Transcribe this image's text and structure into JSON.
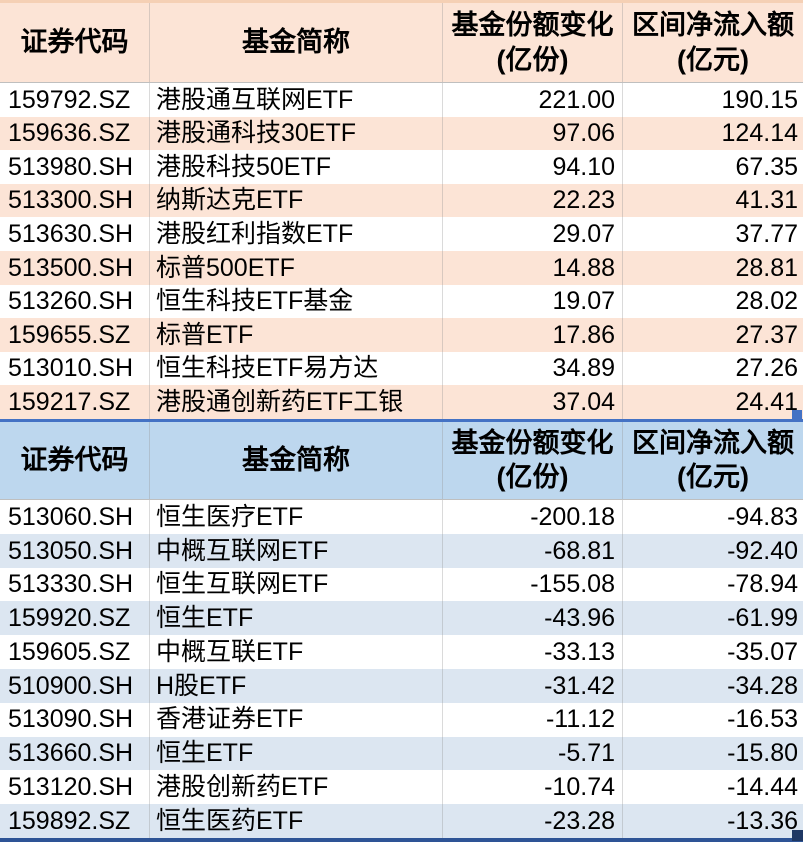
{
  "colors": {
    "peach_header": "#fce4d6",
    "peach_row": "#fce4d6",
    "peach_top_strip": "#f5d0b5",
    "blue_header": "#bdd7ee",
    "blue_row": "#dce6f1",
    "selection_border": "#4472c4",
    "bottom_border": "#2e5496",
    "bottom_handle": "#1f3864"
  },
  "inflow_table": {
    "header": {
      "code": "证券代码",
      "name": "基金简称",
      "share_change_line1": "基金份额变化",
      "share_change_line2": "(亿份)",
      "net_flow_line1": "区间净流入额",
      "net_flow_line2": "(亿元)"
    },
    "rows": [
      {
        "code": "159792.SZ",
        "name": "港股通互联网ETF",
        "share_change": "221.00",
        "net_flow": "190.15"
      },
      {
        "code": "159636.SZ",
        "name": "港股通科技30ETF",
        "share_change": "97.06",
        "net_flow": "124.14"
      },
      {
        "code": "513980.SH",
        "name": "港股科技50ETF",
        "share_change": "94.10",
        "net_flow": "67.35"
      },
      {
        "code": "513300.SH",
        "name": "纳斯达克ETF",
        "share_change": "22.23",
        "net_flow": "41.31"
      },
      {
        "code": "513630.SH",
        "name": "港股红利指数ETF",
        "share_change": "29.07",
        "net_flow": "37.77"
      },
      {
        "code": "513500.SH",
        "name": "标普500ETF",
        "share_change": "14.88",
        "net_flow": "28.81"
      },
      {
        "code": "513260.SH",
        "name": "恒生科技ETF基金",
        "share_change": "19.07",
        "net_flow": "28.02"
      },
      {
        "code": "159655.SZ",
        "name": "标普ETF",
        "share_change": "17.86",
        "net_flow": "27.37"
      },
      {
        "code": "513010.SH",
        "name": "恒生科技ETF易方达",
        "share_change": "34.89",
        "net_flow": "27.26"
      },
      {
        "code": "159217.SZ",
        "name": "港股通创新药ETF工银",
        "share_change": "37.04",
        "net_flow": "24.41"
      }
    ]
  },
  "outflow_table": {
    "header": {
      "code": "证券代码",
      "name": "基金简称",
      "share_change_line1": "基金份额变化",
      "share_change_line2": "(亿份)",
      "net_flow_line1": "区间净流入额",
      "net_flow_line2": "(亿元)"
    },
    "rows": [
      {
        "code": "513060.SH",
        "name": "恒生医疗ETF",
        "share_change": "-200.18",
        "net_flow": "-94.83"
      },
      {
        "code": "513050.SH",
        "name": "中概互联网ETF",
        "share_change": "-68.81",
        "net_flow": "-92.40"
      },
      {
        "code": "513330.SH",
        "name": "恒生互联网ETF",
        "share_change": "-155.08",
        "net_flow": "-78.94"
      },
      {
        "code": "159920.SZ",
        "name": "恒生ETF",
        "share_change": "-43.96",
        "net_flow": "-61.99"
      },
      {
        "code": "159605.SZ",
        "name": "中概互联ETF",
        "share_change": "-33.13",
        "net_flow": "-35.07"
      },
      {
        "code": "510900.SH",
        "name": "H股ETF",
        "share_change": "-31.42",
        "net_flow": "-34.28"
      },
      {
        "code": "513090.SH",
        "name": "香港证券ETF",
        "share_change": "-11.12",
        "net_flow": "-16.53"
      },
      {
        "code": "513660.SH",
        "name": "恒生ETF",
        "share_change": "-5.71",
        "net_flow": "-15.80"
      },
      {
        "code": "513120.SH",
        "name": "港股创新药ETF",
        "share_change": "-10.74",
        "net_flow": "-14.44"
      },
      {
        "code": "159892.SZ",
        "name": "恒生医药ETF",
        "share_change": "-23.28",
        "net_flow": "-13.36"
      }
    ]
  }
}
